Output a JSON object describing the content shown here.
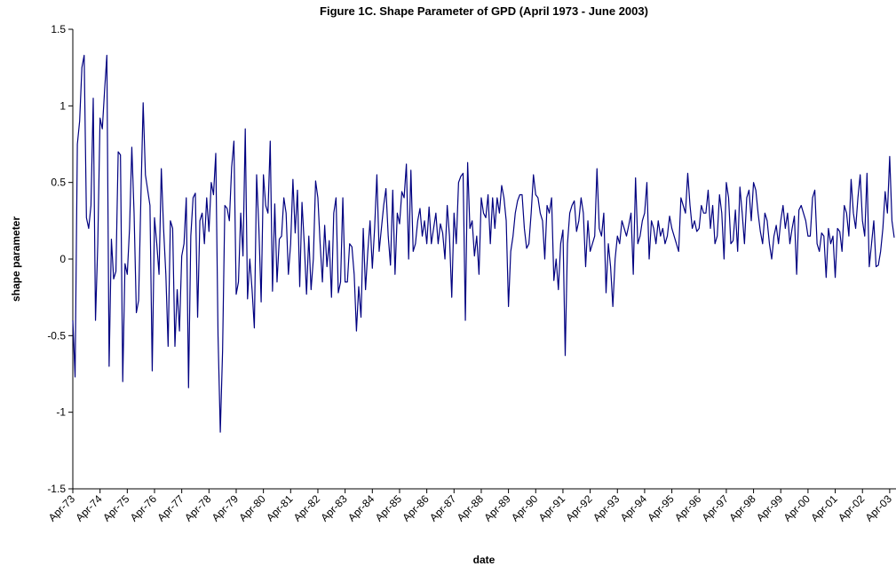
{
  "chart_data": {
    "type": "line",
    "title": "Figure 1C.  Shape Parameter of GPD (April 1973 - June 2003)",
    "x_label": "date",
    "y_label": "shape parameter",
    "ylim": [
      -1.5,
      1.5
    ],
    "yticks": [
      -1.5,
      -1,
      -0.5,
      0,
      0.5,
      1,
      1.5
    ],
    "grid": false,
    "categories": [
      "Apr-73",
      null,
      null,
      null,
      null,
      null,
      null,
      null,
      null,
      null,
      null,
      null,
      "Apr-74",
      null,
      null,
      null,
      null,
      null,
      null,
      null,
      null,
      null,
      null,
      null,
      "Apr-75",
      null,
      null,
      null,
      null,
      null,
      null,
      null,
      null,
      null,
      null,
      null,
      "Apr-76",
      null,
      null,
      null,
      null,
      null,
      null,
      null,
      null,
      null,
      null,
      null,
      "Apr-77",
      null,
      null,
      null,
      null,
      null,
      null,
      null,
      null,
      null,
      null,
      null,
      "Apr-78",
      null,
      null,
      null,
      null,
      null,
      null,
      null,
      null,
      null,
      null,
      null,
      "Apr-79",
      null,
      null,
      null,
      null,
      null,
      null,
      null,
      null,
      null,
      null,
      null,
      "Apr-80",
      null,
      null,
      null,
      null,
      null,
      null,
      null,
      null,
      null,
      null,
      null,
      "Apr-81",
      null,
      null,
      null,
      null,
      null,
      null,
      null,
      null,
      null,
      null,
      null,
      "Apr-82",
      null,
      null,
      null,
      null,
      null,
      null,
      null,
      null,
      null,
      null,
      null,
      "Apr-83",
      null,
      null,
      null,
      null,
      null,
      null,
      null,
      null,
      null,
      null,
      null,
      "Apr-84",
      null,
      null,
      null,
      null,
      null,
      null,
      null,
      null,
      null,
      null,
      null,
      "Apr-85",
      null,
      null,
      null,
      null,
      null,
      null,
      null,
      null,
      null,
      null,
      null,
      "Apr-86",
      null,
      null,
      null,
      null,
      null,
      null,
      null,
      null,
      null,
      null,
      null,
      "Apr-87",
      null,
      null,
      null,
      null,
      null,
      null,
      null,
      null,
      null,
      null,
      null,
      "Apr-88",
      null,
      null,
      null,
      null,
      null,
      null,
      null,
      null,
      null,
      null,
      null,
      "Apr-89",
      null,
      null,
      null,
      null,
      null,
      null,
      null,
      null,
      null,
      null,
      null,
      "Apr-90",
      null,
      null,
      null,
      null,
      null,
      null,
      null,
      null,
      null,
      null,
      null,
      "Apr-91",
      null,
      null,
      null,
      null,
      null,
      null,
      null,
      null,
      null,
      null,
      null,
      "Apr-92",
      null,
      null,
      null,
      null,
      null,
      null,
      null,
      null,
      null,
      null,
      null,
      "Apr-93",
      null,
      null,
      null,
      null,
      null,
      null,
      null,
      null,
      null,
      null,
      null,
      "Apr-94",
      null,
      null,
      null,
      null,
      null,
      null,
      null,
      null,
      null,
      null,
      null,
      "Apr-95",
      null,
      null,
      null,
      null,
      null,
      null,
      null,
      null,
      null,
      null,
      null,
      "Apr-96",
      null,
      null,
      null,
      null,
      null,
      null,
      null,
      null,
      null,
      null,
      null,
      "Apr-97",
      null,
      null,
      null,
      null,
      null,
      null,
      null,
      null,
      null,
      null,
      null,
      "Apr-98",
      null,
      null,
      null,
      null,
      null,
      null,
      null,
      null,
      null,
      null,
      null,
      "Apr-99",
      null,
      null,
      null,
      null,
      null,
      null,
      null,
      null,
      null,
      null,
      null,
      "Apr-00",
      null,
      null,
      null,
      null,
      null,
      null,
      null,
      null,
      null,
      null,
      null,
      "Apr-01",
      null,
      null,
      null,
      null,
      null,
      null,
      null,
      null,
      null,
      null,
      null,
      "Apr-02",
      null,
      null,
      null,
      null,
      null,
      null,
      null,
      null,
      null,
      null,
      null,
      "Apr-03",
      null,
      null
    ],
    "series": [
      {
        "color": "#000080",
        "values": [
          -0.4,
          -0.77,
          0.75,
          0.9,
          1.25,
          1.33,
          0.27,
          0.2,
          0.35,
          1.05,
          -0.4,
          0.1,
          0.92,
          0.85,
          1.1,
          1.33,
          -0.7,
          0.13,
          -0.13,
          -0.08,
          0.7,
          0.68,
          -0.8,
          -0.03,
          -0.1,
          0.2,
          0.73,
          0.3,
          -0.35,
          -0.27,
          0.4,
          1.02,
          0.55,
          0.45,
          0.35,
          -0.73,
          0.27,
          0.1,
          -0.1,
          0.59,
          0.2,
          -0.1,
          -0.57,
          0.25,
          0.2,
          -0.57,
          -0.2,
          -0.47,
          0.02,
          0.1,
          0.4,
          -0.84,
          0.15,
          0.4,
          0.43,
          -0.38,
          0.25,
          0.3,
          0.1,
          0.4,
          0.18,
          0.5,
          0.42,
          0.69,
          -0.5,
          -1.13,
          -0.6,
          0.35,
          0.33,
          0.25,
          0.6,
          0.77,
          -0.23,
          -0.15,
          0.3,
          0.02,
          0.85,
          -0.26,
          0.0,
          -0.2,
          -0.45,
          0.55,
          0.2,
          -0.28,
          0.55,
          0.35,
          0.3,
          0.77,
          -0.21,
          0.36,
          -0.15,
          0.13,
          0.15,
          0.4,
          0.3,
          -0.1,
          0.1,
          0.52,
          0.17,
          0.45,
          -0.18,
          0.37,
          0.1,
          -0.23,
          0.15,
          -0.2,
          0.0,
          0.51,
          0.4,
          0.1,
          -0.15,
          0.22,
          -0.05,
          0.12,
          -0.25,
          0.3,
          0.4,
          -0.22,
          -0.15,
          0.4,
          -0.15,
          -0.15,
          0.1,
          0.08,
          -0.1,
          -0.47,
          -0.18,
          -0.38,
          0.2,
          -0.2,
          0.05,
          0.25,
          -0.06,
          0.2,
          0.55,
          0.05,
          0.2,
          0.35,
          0.46,
          0.15,
          -0.04,
          0.45,
          -0.1,
          0.3,
          0.23,
          0.44,
          0.4,
          0.62,
          0.0,
          0.58,
          0.05,
          0.1,
          0.25,
          0.33,
          0.15,
          0.25,
          0.1,
          0.34,
          0.1,
          0.2,
          0.3,
          0.1,
          0.23,
          0.17,
          0.0,
          0.35,
          0.15,
          -0.25,
          0.3,
          0.1,
          0.5,
          0.54,
          0.56,
          -0.4,
          0.63,
          0.2,
          0.25,
          0.02,
          0.15,
          -0.1,
          0.4,
          0.3,
          0.27,
          0.42,
          0.1,
          0.4,
          0.2,
          0.4,
          0.3,
          0.48,
          0.4,
          0.25,
          -0.31,
          0.05,
          0.15,
          0.3,
          0.38,
          0.42,
          0.42,
          0.2,
          0.07,
          0.1,
          0.3,
          0.55,
          0.42,
          0.4,
          0.3,
          0.25,
          0.0,
          0.35,
          0.3,
          0.4,
          -0.14,
          0.0,
          -0.2,
          0.1,
          0.19,
          -0.63,
          0.1,
          0.3,
          0.35,
          0.38,
          0.18,
          0.25,
          0.4,
          0.3,
          -0.05,
          0.25,
          0.05,
          0.1,
          0.15,
          0.59,
          0.2,
          0.15,
          0.3,
          -0.22,
          0.1,
          -0.05,
          -0.31,
          0.0,
          0.15,
          0.1,
          0.25,
          0.2,
          0.15,
          0.22,
          0.3,
          -0.1,
          0.53,
          0.1,
          0.15,
          0.25,
          0.3,
          0.5,
          0.0,
          0.25,
          0.2,
          0.1,
          0.25,
          0.15,
          0.2,
          0.1,
          0.15,
          0.28,
          0.2,
          0.15,
          0.1,
          0.05,
          0.4,
          0.35,
          0.3,
          0.56,
          0.35,
          0.2,
          0.25,
          0.18,
          0.2,
          0.35,
          0.3,
          0.3,
          0.45,
          0.2,
          0.35,
          0.1,
          0.15,
          0.42,
          0.3,
          0.0,
          0.5,
          0.4,
          0.1,
          0.12,
          0.32,
          0.05,
          0.47,
          0.3,
          0.1,
          0.4,
          0.45,
          0.25,
          0.5,
          0.45,
          0.3,
          0.18,
          0.1,
          0.3,
          0.25,
          0.1,
          0.0,
          0.15,
          0.22,
          0.1,
          0.25,
          0.35,
          0.2,
          0.3,
          0.1,
          0.2,
          0.28,
          -0.1,
          0.32,
          0.35,
          0.3,
          0.25,
          0.15,
          0.15,
          0.4,
          0.45,
          0.1,
          0.05,
          0.17,
          0.15,
          -0.12,
          0.2,
          0.1,
          0.15,
          -0.12,
          0.2,
          0.18,
          0.05,
          0.35,
          0.3,
          0.15,
          0.52,
          0.3,
          0.2,
          0.4,
          0.55,
          0.25,
          0.15,
          0.56,
          -0.05,
          0.1,
          0.25,
          -0.05,
          -0.04,
          0.05,
          0.2,
          0.44,
          0.3,
          0.67,
          0.25,
          0.14
        ]
      }
    ]
  }
}
